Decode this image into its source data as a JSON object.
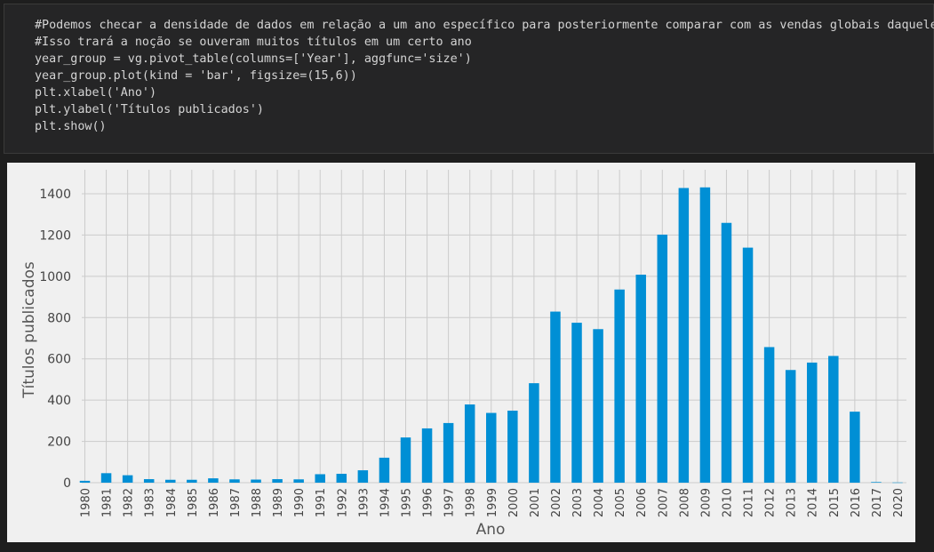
{
  "code": {
    "lines": [
      "#Podemos checar a densidade de dados em relação a um ano específico para posteriormente comparar com as vendas globais daquele ano.",
      "#Isso trará a noção se ouveram muitos títulos em um certo ano",
      "year_group = vg.pivot_table(columns=['Year'], aggfunc='size')",
      "year_group.plot(kind = 'bar', figsize=(15,6))",
      "plt.xlabel('Ano')",
      "plt.ylabel('Títulos publicados')",
      "plt.show()"
    ]
  },
  "chart_data": {
    "type": "bar",
    "categories": [
      "1980",
      "1981",
      "1982",
      "1983",
      "1984",
      "1985",
      "1986",
      "1987",
      "1988",
      "1989",
      "1990",
      "1991",
      "1992",
      "1993",
      "1994",
      "1995",
      "1996",
      "1997",
      "1998",
      "1999",
      "2000",
      "2001",
      "2002",
      "2003",
      "2004",
      "2005",
      "2006",
      "2007",
      "2008",
      "2009",
      "2010",
      "2011",
      "2012",
      "2013",
      "2014",
      "2015",
      "2016",
      "2017",
      "2020"
    ],
    "values": [
      9,
      46,
      36,
      17,
      14,
      14,
      21,
      16,
      15,
      17,
      16,
      41,
      43,
      60,
      121,
      219,
      263,
      289,
      379,
      338,
      349,
      482,
      829,
      775,
      744,
      936,
      1008,
      1202,
      1428,
      1431,
      1259,
      1139,
      657,
      546,
      582,
      614,
      344,
      3,
      1
    ],
    "xlabel": "Ano",
    "ylabel": "Títulos publicados",
    "yticks": [
      0,
      200,
      400,
      600,
      800,
      1000,
      1200,
      1400
    ],
    "ylim": [
      0,
      1500
    ],
    "grid": true,
    "bar_color": "#008fd5",
    "background": "#f0f0f0",
    "grid_color": "#cbcbcb"
  }
}
